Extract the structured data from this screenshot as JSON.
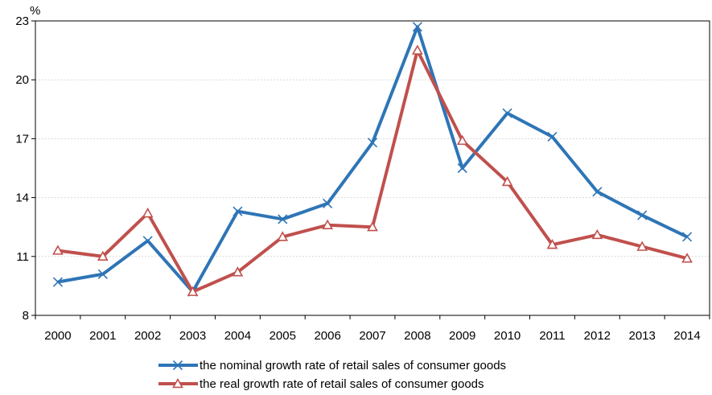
{
  "chart_data": {
    "type": "line",
    "ylabel": "%",
    "ylim": [
      8,
      23
    ],
    "yticks": [
      8,
      11,
      14,
      17,
      20,
      23
    ],
    "grid": true,
    "legend_position": "bottom",
    "categories": [
      "2000",
      "2001",
      "2002",
      "2003",
      "2004",
      "2005",
      "2006",
      "2007",
      "2008",
      "2009",
      "2010",
      "2011",
      "2012",
      "2013",
      "2014"
    ],
    "series": [
      {
        "name": "the nominal growth rate of retail sales of consumer goods",
        "color": "#2e75b6",
        "marker": "x",
        "values": [
          9.7,
          10.1,
          11.8,
          9.2,
          13.3,
          12.9,
          13.7,
          16.8,
          22.7,
          15.5,
          18.3,
          17.1,
          14.3,
          13.1,
          12.0
        ]
      },
      {
        "name": "the real growth rate of retail sales of consumer goods",
        "color": "#c0504d",
        "marker": "triangle",
        "values": [
          11.3,
          11.0,
          13.2,
          9.2,
          10.2,
          12.0,
          12.6,
          12.5,
          21.5,
          16.9,
          14.8,
          11.6,
          12.1,
          11.5,
          10.9
        ]
      }
    ]
  }
}
